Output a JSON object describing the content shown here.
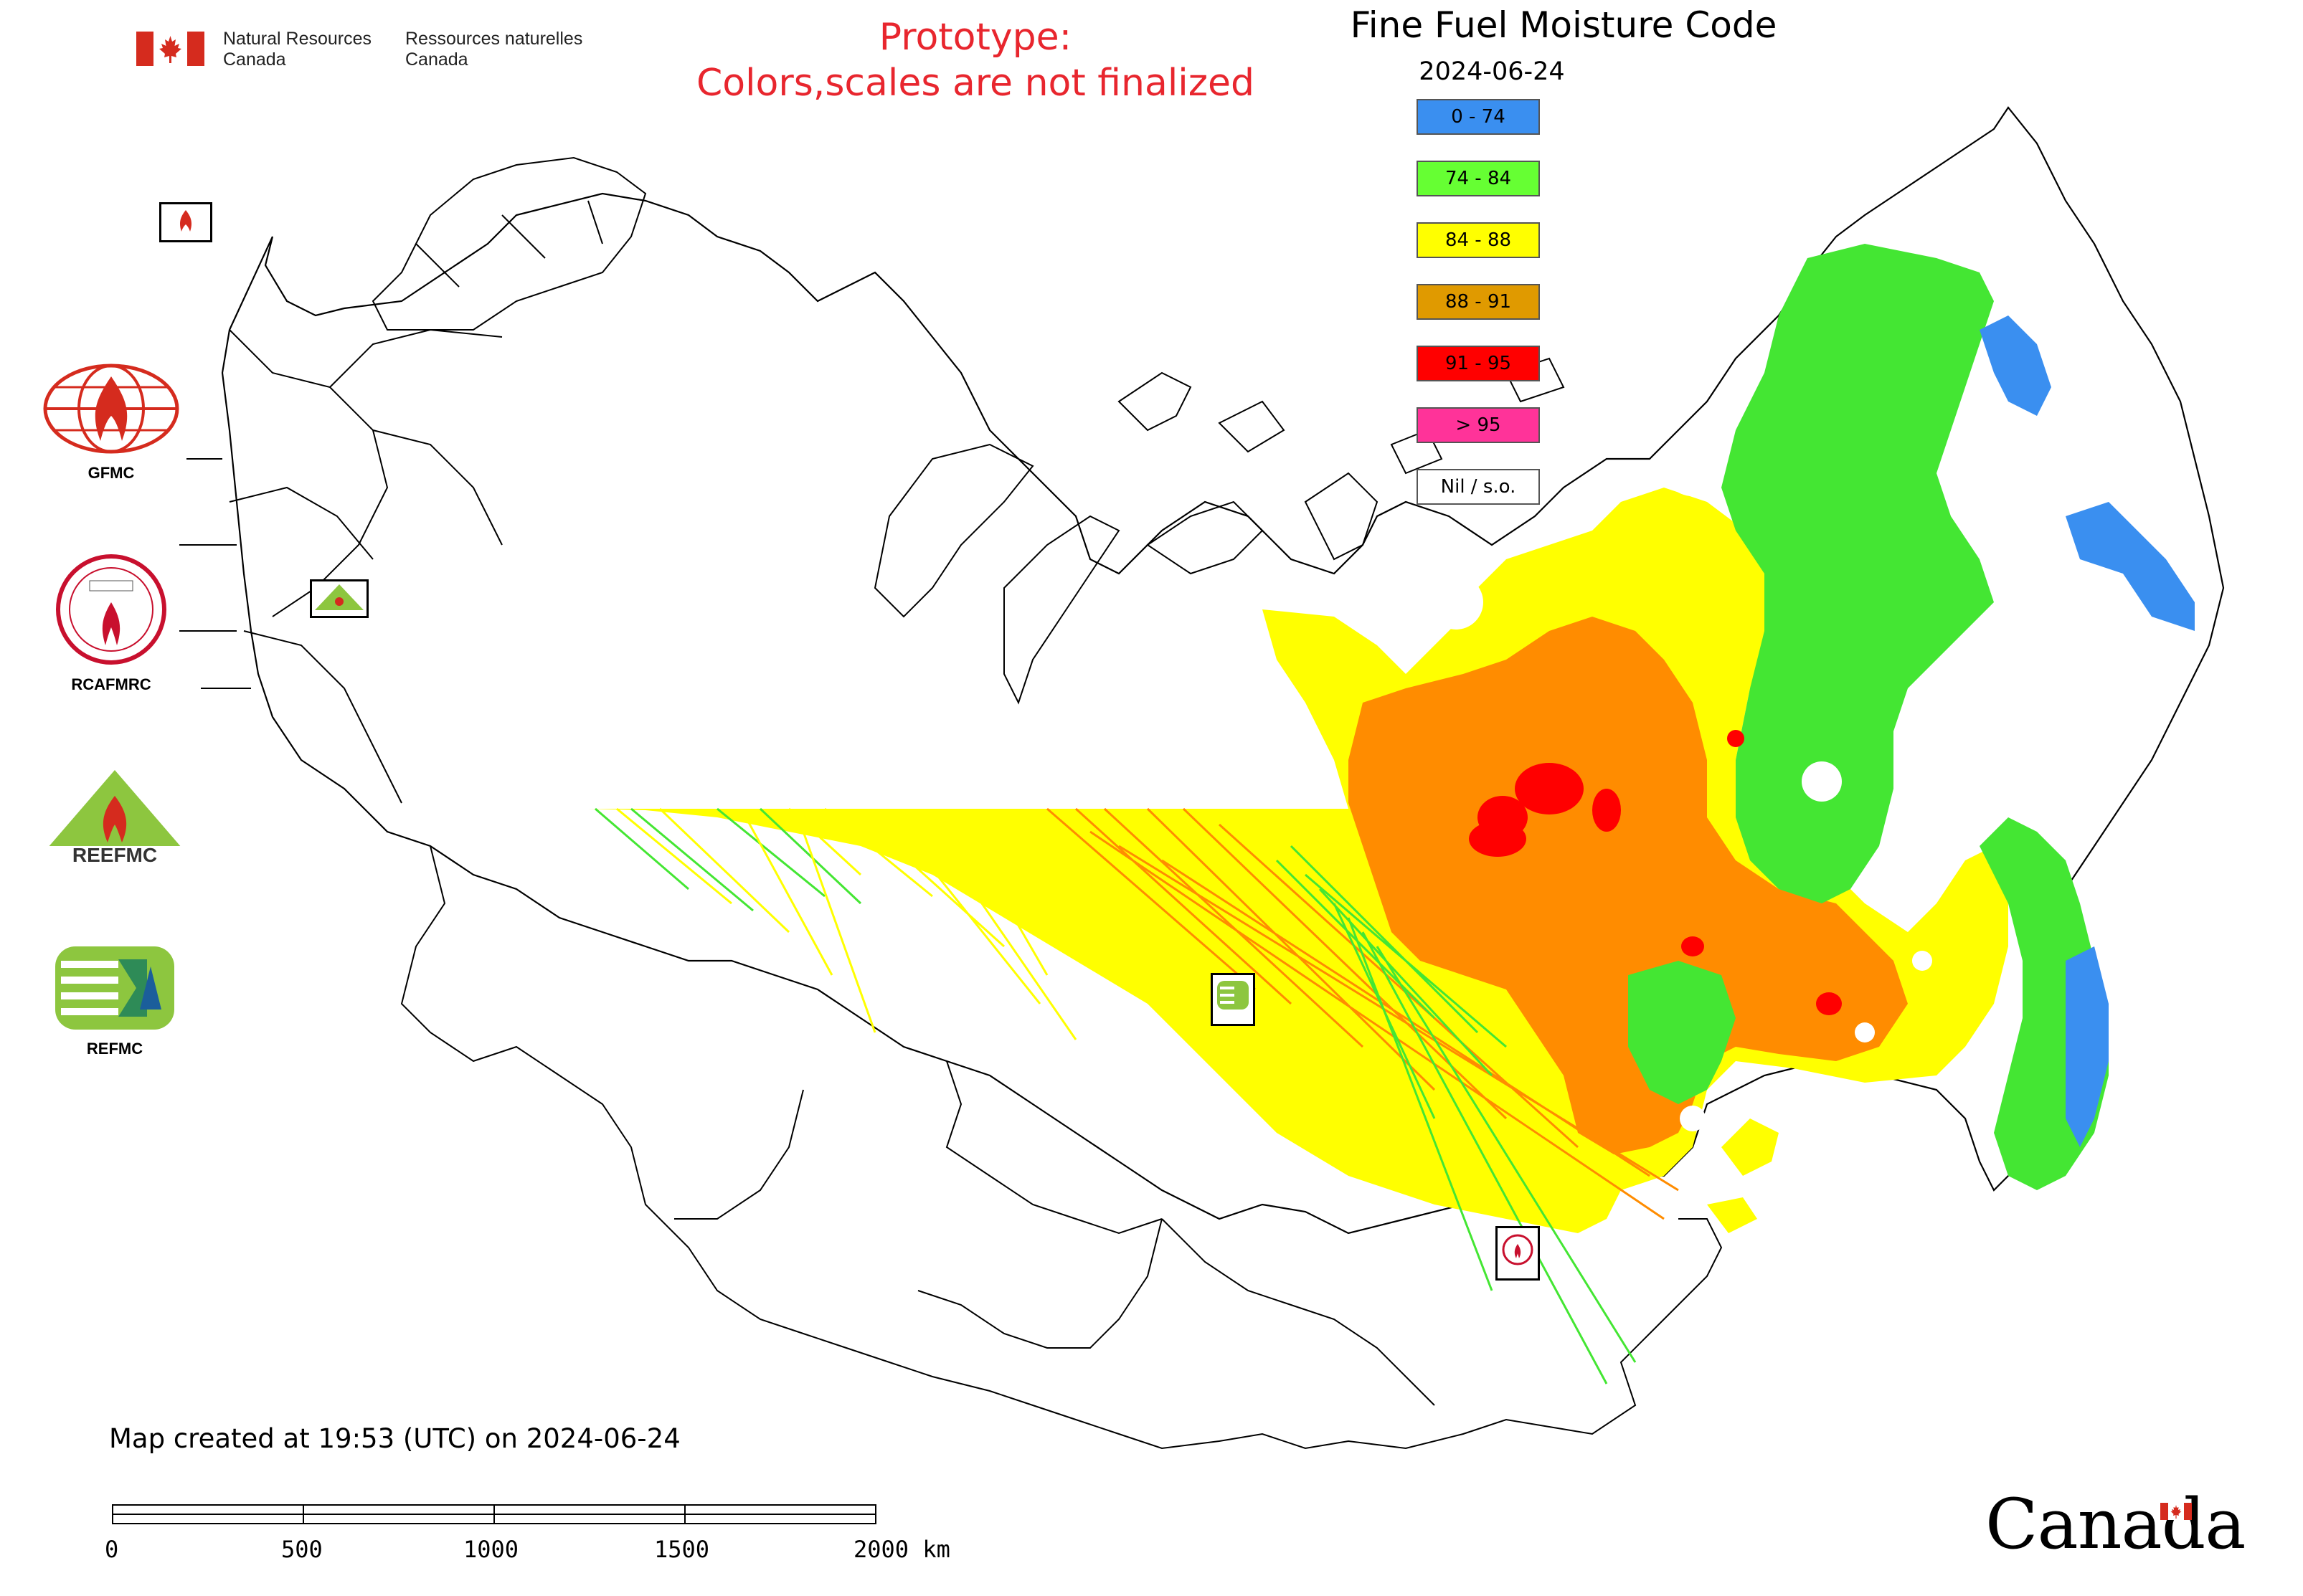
{
  "header": {
    "agency_en_line1": "Natural Resources",
    "agency_en_line2": "Canada",
    "agency_fr_line1": "Ressources naturelles",
    "agency_fr_line2": "Canada",
    "prototype_line1": "Prototype:",
    "prototype_line2": "Colors,scales are not finalized",
    "map_title": "Fine Fuel Moisture Code",
    "map_date": "2024-06-24"
  },
  "legend": [
    {
      "label": "0 - 74",
      "color": "#3a8ff0"
    },
    {
      "label": "74 - 84",
      "color": "#66ff33"
    },
    {
      "label": "84 - 88",
      "color": "#ffff00"
    },
    {
      "label": "88 - 91",
      "color": "#e09a00"
    },
    {
      "label": "91 - 95",
      "color": "#ff0000"
    },
    {
      "label": "> 95",
      "color": "#ff3399"
    },
    {
      "label": "Nil / s.o.",
      "color": "#ffffff"
    }
  ],
  "logos": [
    {
      "label": "GFMC",
      "icon": "gfmc-globe-flame-logo"
    },
    {
      "label": "RCAFMRC",
      "icon": "rcafmrc-seal-logo"
    },
    {
      "label": "",
      "icon": "reefmc-triangle-logo",
      "wordmark": "REEFMC"
    },
    {
      "label": "REFMC",
      "icon": "refmc-sigma-logo"
    }
  ],
  "footer": {
    "created": "Map created at 19:53 (UTC) on 2024-06-24",
    "scale_labels": [
      "0",
      "500",
      "1000",
      "1500",
      "2000 km"
    ],
    "wordmark": "Canada"
  },
  "map_colors": {
    "land_outline": "#000000",
    "fill_0_74": "#3a8ff0",
    "fill_74_84": "#44e633",
    "fill_84_88": "#ffff00",
    "fill_88_91": "#ff8c00",
    "fill_91_95": "#ff0000"
  }
}
